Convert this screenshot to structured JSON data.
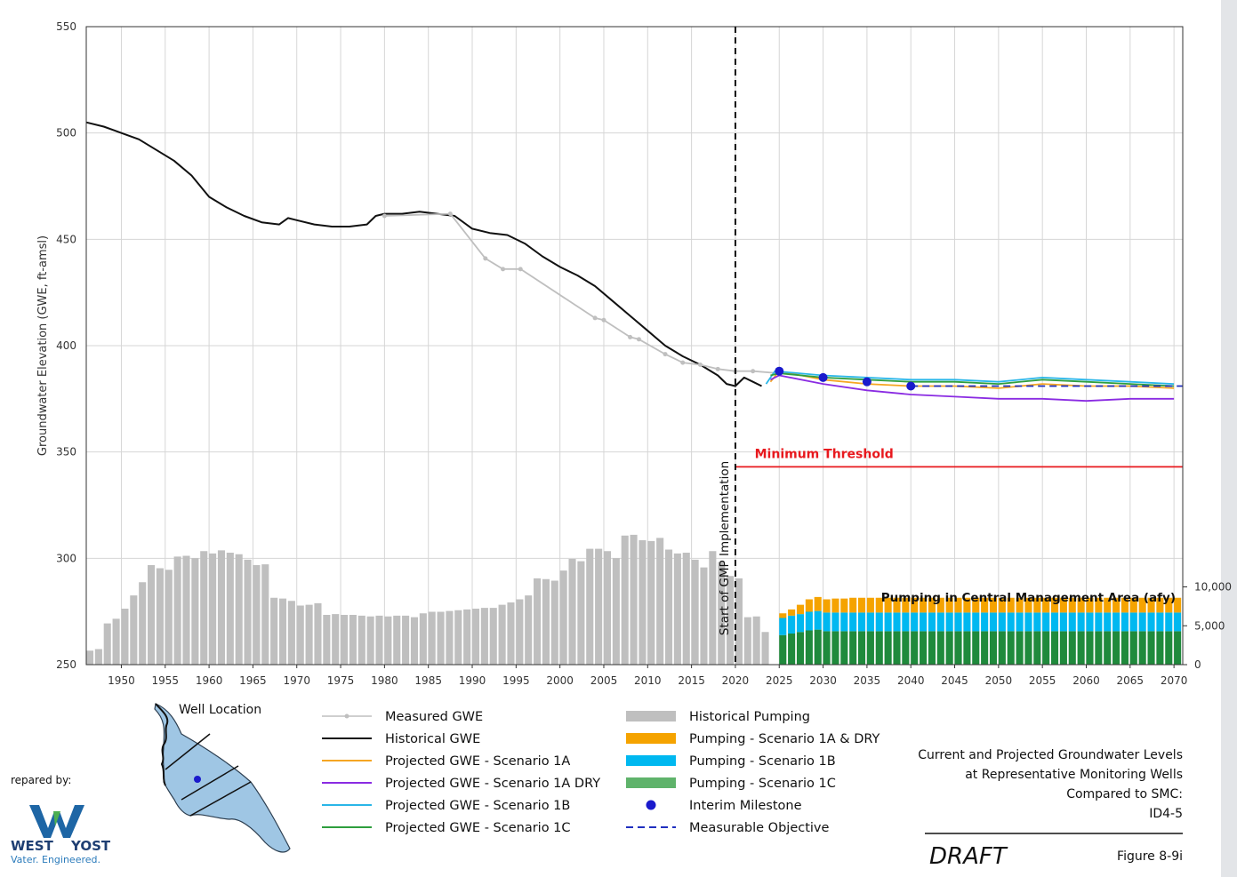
{
  "chart_data": {
    "type": "line",
    "ylabel": "Groundwater Elevation (GWE, ft-amsl)",
    "xlim": [
      1946,
      2071
    ],
    "ylim": [
      250,
      550
    ],
    "yticks": [
      250,
      300,
      350,
      400,
      450,
      500,
      550
    ],
    "xticks": [
      1950,
      1955,
      1960,
      1965,
      1970,
      1975,
      1980,
      1985,
      1990,
      1995,
      2000,
      2005,
      2010,
      2015,
      2020,
      2025,
      2030,
      2035,
      2040,
      2045,
      2050,
      2055,
      2060,
      2065,
      2070
    ],
    "secondary_axis": {
      "ticks": [
        0,
        5000,
        10000
      ],
      "tick_labels": [
        "0",
        "5,000",
        "10,000"
      ],
      "ylim": [
        0,
        20000
      ]
    },
    "grid": true,
    "series": [
      {
        "name": "Historical GWE",
        "color": "#111111",
        "points": [
          [
            1946,
            505
          ],
          [
            1948,
            503
          ],
          [
            1950,
            500
          ],
          [
            1952,
            497
          ],
          [
            1954,
            492
          ],
          [
            1956,
            487
          ],
          [
            1958,
            480
          ],
          [
            1960,
            470
          ],
          [
            1962,
            465
          ],
          [
            1964,
            461
          ],
          [
            1966,
            458
          ],
          [
            1968,
            457
          ],
          [
            1969,
            460
          ],
          [
            1970,
            459
          ],
          [
            1972,
            457
          ],
          [
            1974,
            456
          ],
          [
            1976,
            456
          ],
          [
            1978,
            457
          ],
          [
            1979,
            461
          ],
          [
            1980,
            462
          ],
          [
            1982,
            462
          ],
          [
            1984,
            463
          ],
          [
            1986,
            462
          ],
          [
            1988,
            461
          ],
          [
            1990,
            455
          ],
          [
            1992,
            453
          ],
          [
            1994,
            452
          ],
          [
            1996,
            448
          ],
          [
            1998,
            442
          ],
          [
            2000,
            437
          ],
          [
            2002,
            433
          ],
          [
            2004,
            428
          ],
          [
            2006,
            421
          ],
          [
            2008,
            414
          ],
          [
            2010,
            407
          ],
          [
            2012,
            400
          ],
          [
            2014,
            395
          ],
          [
            2016,
            391
          ],
          [
            2018,
            386
          ],
          [
            2019,
            382
          ],
          [
            2020,
            381
          ],
          [
            2021,
            385
          ],
          [
            2022,
            383
          ],
          [
            2023,
            381
          ]
        ]
      },
      {
        "name": "Measured GWE",
        "color": "#bfbfbf",
        "points": [
          [
            1980,
            461
          ],
          [
            1987.5,
            462
          ],
          [
            1991.5,
            441
          ],
          [
            1993.5,
            436
          ],
          [
            1995.5,
            436
          ],
          [
            2004,
            413
          ],
          [
            2005,
            412
          ],
          [
            2008,
            404
          ],
          [
            2009,
            403
          ],
          [
            2012,
            396
          ],
          [
            2014,
            392
          ],
          [
            2016,
            391
          ],
          [
            2018,
            389
          ],
          [
            2020,
            388
          ],
          [
            2022,
            388
          ],
          [
            2025,
            387
          ]
        ]
      },
      {
        "name": "Projected GWE - Scenario 1A",
        "color": "#f5a623",
        "points": [
          [
            2024,
            383
          ],
          [
            2025,
            388
          ],
          [
            2030,
            384
          ],
          [
            2035,
            382
          ],
          [
            2040,
            381
          ],
          [
            2045,
            381
          ],
          [
            2050,
            380
          ],
          [
            2055,
            382
          ],
          [
            2060,
            381
          ],
          [
            2065,
            381
          ],
          [
            2070,
            380
          ]
        ]
      },
      {
        "name": "Projected GWE - Scenario 1A DRY",
        "color": "#8a2be2",
        "points": [
          [
            2024,
            384
          ],
          [
            2025,
            386
          ],
          [
            2030,
            382
          ],
          [
            2035,
            379
          ],
          [
            2040,
            377
          ],
          [
            2045,
            376
          ],
          [
            2050,
            375
          ],
          [
            2055,
            375
          ],
          [
            2060,
            374
          ],
          [
            2065,
            375
          ],
          [
            2070,
            375
          ]
        ]
      },
      {
        "name": "Projected GWE - Scenario 1B",
        "color": "#29b6e8",
        "points": [
          [
            2023.5,
            382
          ],
          [
            2024.5,
            388
          ],
          [
            2030,
            386
          ],
          [
            2035,
            385
          ],
          [
            2040,
            384
          ],
          [
            2045,
            384
          ],
          [
            2050,
            383
          ],
          [
            2055,
            385
          ],
          [
            2060,
            384
          ],
          [
            2065,
            383
          ],
          [
            2070,
            382
          ]
        ]
      },
      {
        "name": "Projected GWE - Scenario 1C",
        "color": "#2e9e3e",
        "points": [
          [
            2024,
            386
          ],
          [
            2025,
            387
          ],
          [
            2030,
            385
          ],
          [
            2035,
            384
          ],
          [
            2040,
            383
          ],
          [
            2045,
            383
          ],
          [
            2050,
            382
          ],
          [
            2055,
            384
          ],
          [
            2060,
            383
          ],
          [
            2065,
            382
          ],
          [
            2070,
            381
          ]
        ]
      },
      {
        "name": "Measurable Objective",
        "color": "#1f2fbf",
        "dashed": true,
        "points": [
          [
            2040,
            381
          ],
          [
            2071,
            381
          ]
        ]
      },
      {
        "name": "Minimum Threshold",
        "color": "#e8191e",
        "points": [
          [
            2020,
            343
          ],
          [
            2071,
            343
          ]
        ]
      }
    ],
    "interim_milestones": [
      [
        2025,
        388
      ],
      [
        2030,
        385
      ],
      [
        2035,
        383
      ],
      [
        2040,
        381
      ]
    ],
    "gmp_start_year": 2020,
    "historical_pumping": {
      "years": [
        1946,
        1947,
        1948,
        1949,
        1950,
        1951,
        1952,
        1953,
        1954,
        1955,
        1956,
        1957,
        1958,
        1959,
        1960,
        1961,
        1962,
        1963,
        1964,
        1965,
        1966,
        1967,
        1968,
        1969,
        1970,
        1971,
        1972,
        1973,
        1974,
        1975,
        1976,
        1977,
        1978,
        1979,
        1980,
        1981,
        1982,
        1983,
        1984,
        1985,
        1986,
        1987,
        1988,
        1989,
        1990,
        1991,
        1992,
        1993,
        1994,
        1995,
        1996,
        1997,
        1998,
        1999,
        2000,
        2001,
        2002,
        2003,
        2004,
        2005,
        2006,
        2007,
        2008,
        2009,
        2010,
        2011,
        2012,
        2013,
        2014,
        2015,
        2016,
        2017,
        2018,
        2019,
        2020,
        2021,
        2022,
        2023
      ],
      "values": [
        1800,
        2000,
        5300,
        5900,
        7200,
        8900,
        10600,
        12800,
        12400,
        12200,
        13900,
        14000,
        13700,
        14600,
        14300,
        14700,
        14400,
        14200,
        13500,
        12800,
        12900,
        8600,
        8500,
        8200,
        7600,
        7700,
        7900,
        6400,
        6500,
        6400,
        6400,
        6300,
        6200,
        6300,
        6200,
        6300,
        6300,
        6100,
        6600,
        6800,
        6800,
        6900,
        7000,
        7100,
        7200,
        7300,
        7300,
        7700,
        8000,
        8400,
        8900,
        11100,
        11000,
        10800,
        12100,
        13600,
        13300,
        14900,
        14900,
        14600,
        13700,
        16600,
        16700,
        16000,
        15900,
        16300,
        14800,
        14300,
        14400,
        13500,
        12500,
        14600,
        13200,
        11400,
        11100,
        6100,
        6200,
        4200
      ]
    },
    "projected_pumping": {
      "years": [
        2025,
        2026,
        2027,
        2028,
        2029,
        2030,
        2031,
        2032,
        2033,
        2034,
        2035,
        2036,
        2037,
        2038,
        2039,
        2040,
        2041,
        2042,
        2043,
        2044,
        2045,
        2046,
        2047,
        2048,
        2049,
        2050,
        2051,
        2052,
        2053,
        2054,
        2055,
        2056,
        2057,
        2058,
        2059,
        2060,
        2061,
        2062,
        2063,
        2064,
        2065,
        2066,
        2067,
        2068,
        2069,
        2070
      ],
      "scenario_1c": [
        3800,
        4000,
        4200,
        4400,
        4500,
        4300,
        4300,
        4300,
        4300,
        4300,
        4300,
        4300,
        4300,
        4300,
        4300,
        4300,
        4300,
        4300,
        4300,
        4300,
        4300,
        4300,
        4300,
        4300,
        4300,
        4300,
        4300,
        4300,
        4300,
        4300,
        4300,
        4300,
        4300,
        4300,
        4300,
        4300,
        4300,
        4300,
        4300,
        4300,
        4300,
        4300,
        4300,
        4300,
        4300,
        4300
      ],
      "scenario_1b": [
        2200,
        2300,
        2300,
        2400,
        2400,
        2400,
        2400,
        2400,
        2400,
        2400,
        2400,
        2400,
        2400,
        2400,
        2400,
        2400,
        2400,
        2400,
        2400,
        2400,
        2400,
        2400,
        2400,
        2400,
        2400,
        2400,
        2400,
        2400,
        2400,
        2400,
        2400,
        2400,
        2400,
        2400,
        2400,
        2400,
        2400,
        2400,
        2400,
        2400,
        2400,
        2400,
        2400,
        2400,
        2400,
        2400
      ],
      "scenario_1a": [
        600,
        800,
        1200,
        1600,
        1800,
        1700,
        1800,
        1800,
        1900,
        1900,
        1900,
        1900,
        1900,
        1900,
        1900,
        1900,
        1900,
        1900,
        1900,
        1900,
        1900,
        1900,
        1900,
        1900,
        1900,
        1900,
        1900,
        1900,
        1900,
        1900,
        1900,
        1900,
        1900,
        1900,
        1900,
        1900,
        1900,
        1900,
        1900,
        1900,
        1900,
        1900,
        1900,
        1900,
        1900,
        1900
      ]
    }
  },
  "labels": {
    "min_threshold": "Minimum Threshold",
    "gmp": "Start of GMP Implementation",
    "pumping_title": "Pumping in Central Management Area (afy)"
  },
  "colors": {
    "historical_pumping": "#bfbfbf",
    "pumping_1a": "#f5a300",
    "pumping_1b": "#00b8f0",
    "pumping_1c": "#1f8a3c",
    "milestone": "#1a1acc",
    "map_fill": "#9fc6e4"
  },
  "legend": {
    "col1": [
      "Measured GWE",
      "Historical GWE",
      "Projected GWE - Scenario 1A",
      "Projected GWE - Scenario 1A DRY",
      "Projected GWE - Scenario 1B",
      "Projected GWE - Scenario 1C"
    ],
    "col2": [
      "Historical Pumping",
      "Pumping - Scenario 1A & DRY",
      "Pumping - Scenario 1B",
      "Pumping - Scenario 1C",
      "Interim Milestone",
      "Measurable Objective"
    ]
  },
  "footer": {
    "well_location": "Well Location",
    "prepared_by": "repared by:",
    "logo_line1": "WEST",
    "logo_line2": "YOST",
    "logo_tagline": "Vater. Engineered.",
    "caption": [
      "Current and Projected Groundwater Levels",
      "at Representative Monitoring Wells",
      "Compared to SMC:",
      "ID4-5"
    ],
    "draft": "DRAFT",
    "figure": "Figure 8-9i"
  }
}
